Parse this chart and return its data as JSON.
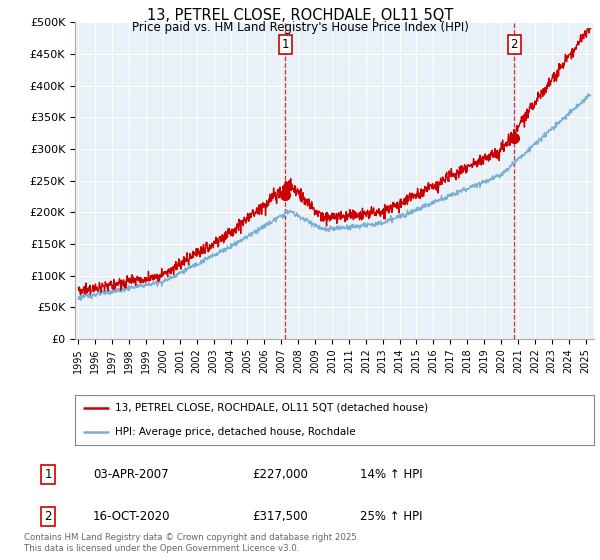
{
  "title": "13, PETREL CLOSE, ROCHDALE, OL11 5QT",
  "subtitle": "Price paid vs. HM Land Registry's House Price Index (HPI)",
  "ylim": [
    0,
    500000
  ],
  "xlim_start": 1994.8,
  "xlim_end": 2025.5,
  "transaction1": {
    "date": "03-APR-2007",
    "price": 227000,
    "hpi_pct": "14% ↑ HPI",
    "label": "1",
    "x_year": 2007.25
  },
  "transaction2": {
    "date": "16-OCT-2020",
    "price": 317500,
    "hpi_pct": "25% ↑ HPI",
    "label": "2",
    "x_year": 2020.79
  },
  "legend_line1": "13, PETREL CLOSE, ROCHDALE, OL11 5QT (detached house)",
  "legend_line2": "HPI: Average price, detached house, Rochdale",
  "footer": "Contains HM Land Registry data © Crown copyright and database right 2025.\nThis data is licensed under the Open Government Licence v3.0.",
  "red_color": "#cc0000",
  "blue_color": "#7aafd4",
  "bg_color": "#ffffff",
  "chart_bg": "#e8f0f8",
  "grid_color": "#ffffff"
}
